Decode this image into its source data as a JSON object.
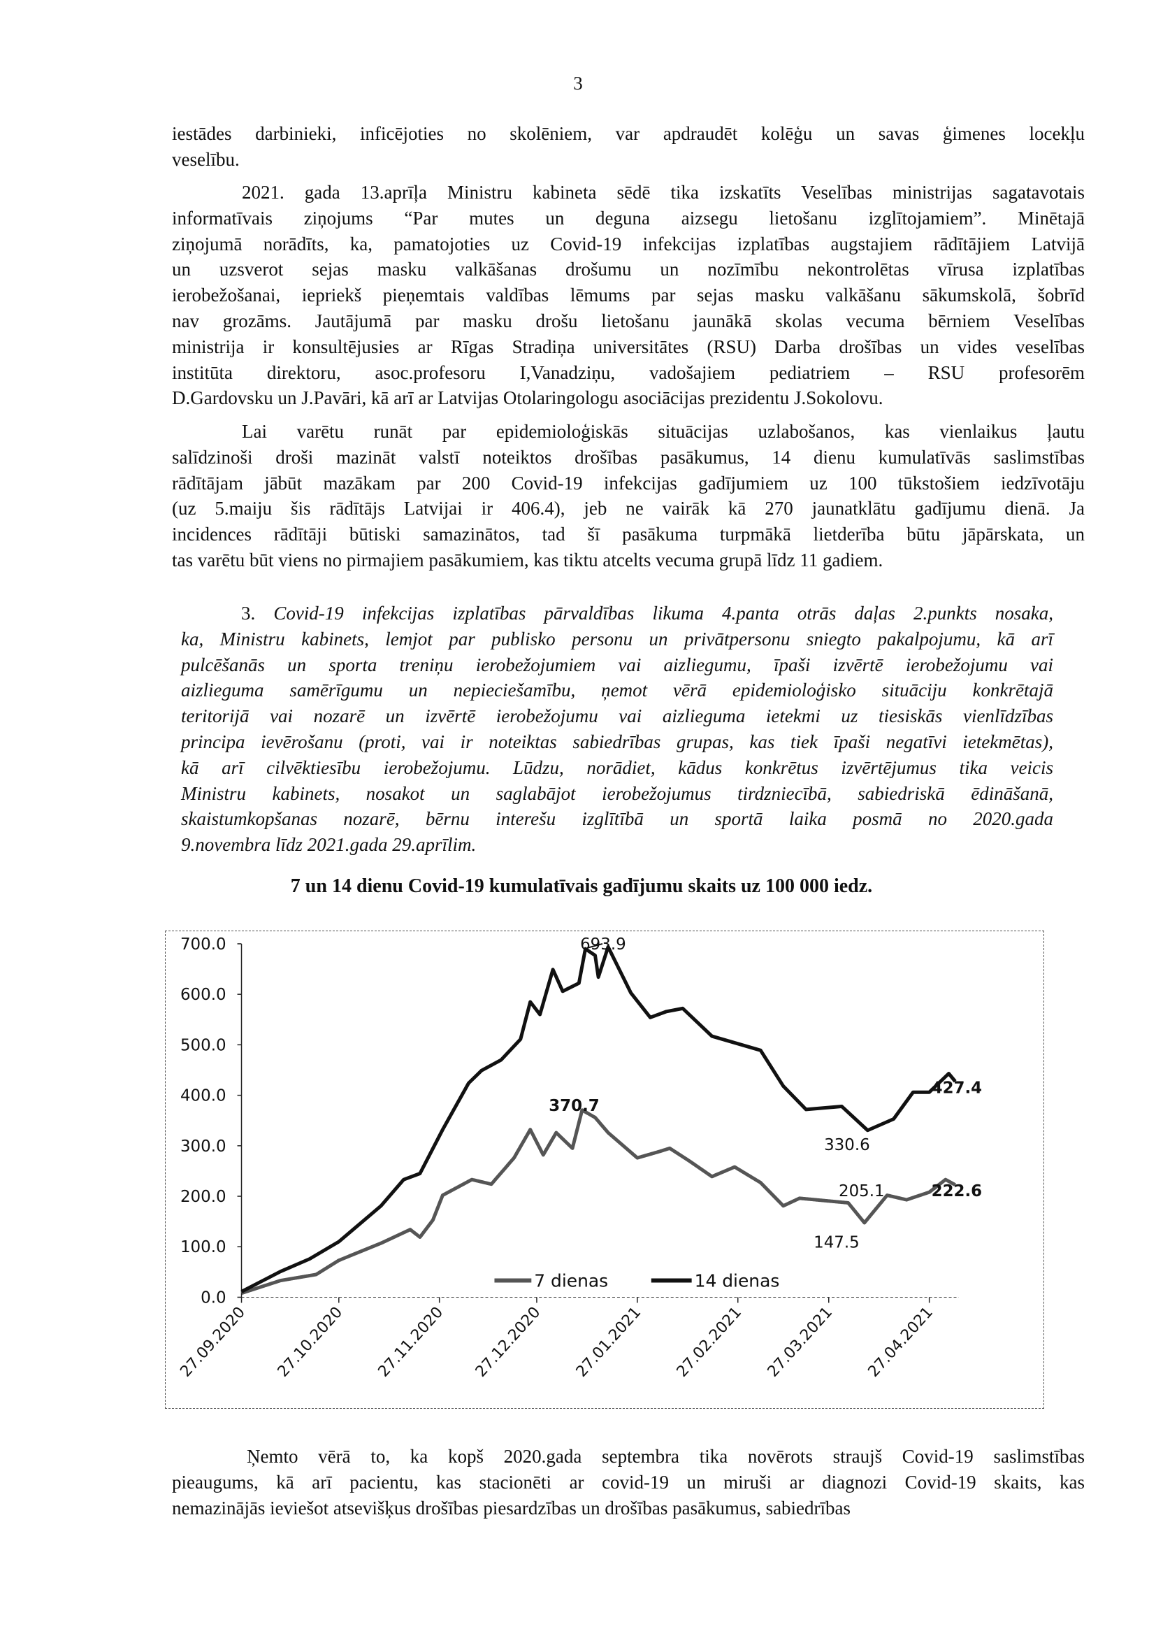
{
  "page_number": "3",
  "paragraphs": [
    {
      "indent": false,
      "italic": false,
      "lines": [
        "iestādes darbinieki, inficējoties no skolēniem, var apdraudēt kolēģu un savas ģimenes locekļu",
        "veselību."
      ]
    },
    {
      "indent": true,
      "italic": false,
      "lines": [
        "2021. gada 13.aprīļa Ministru kabineta sēdē tika izskatīts Veselības ministrijas sagatavotais",
        "informatīvais ziņojums “Par mutes un deguna aizsegu lietošanu izglītojamiem”. Minētajā",
        "ziņojumā norādīts, ka, pamatojoties uz Covid-19 infekcijas izplatības augstajiem rādītājiem Latvijā",
        "un uzsverot sejas masku valkāšanas drošumu un nozīmību nekontrolētas vīrusa izplatības",
        "ierobežošanai, iepriekš pieņemtais valdības lēmums par sejas masku valkāšanu sākumskolā, šobrīd",
        "nav grozāms. Jautājumā par masku drošu lietošanu jaunākā skolas vecuma bērniem Veselības",
        "ministrija ir konsultējusies ar Rīgas Stradiņa universitātes (RSU) Darba drošības un vides veselības",
        "institūta direktoru, asoc.profesoru I,Vanadziņu, vadošajiem pediatriem – RSU profesorēm",
        "D.Gardovsku un J.Pavāri, kā arī ar Latvijas Otolaringologu asociācijas prezidentu J.Sokolovu."
      ]
    },
    {
      "indent": true,
      "italic": false,
      "lines": [
        "Lai varētu runāt par epidemioloģiskās situācijas uzlabošanos, kas vienlaikus ļautu",
        "salīdzinoši droši mazināt valstī noteiktos drošības pasākumus, 14 dienu kumulatīvās saslimstības",
        "rādītājam jābūt mazākam par 200 Covid-19 infekcijas gadījumiem uz 100 tūkstošiem iedzīvotāju",
        "(uz 5.maiju šis rādītājs Latvijai ir 406.4), jeb ne vairāk kā 270 jaunatklātu gadījumu dienā. Ja",
        "incidences rādītāji būtiski samazinātos, tad šī pasākuma turpmākā lietderība būtu jāpārskata, un",
        "tas varētu būt viens no pirmajiem pasākumiem, kas tiktu atcelts vecuma grupā līdz 11 gadiem."
      ]
    }
  ],
  "question": {
    "number": "3.",
    "lines": [
      "Covid-19 infekcijas izplatības pārvaldības likuma 4.panta otrās daļas 2.punkts nosaka,",
      "ka, Ministru kabinets, lemjot par publisko personu un privātpersonu sniegto pakalpojumu, kā arī",
      "pulcēšanās un sporta treniņu ierobežojumiem vai aizliegumu, īpaši izvērtē ierobežojumu vai",
      "aizlieguma samērīgumu un nepieciešamību, ņemot vērā epidemioloģisko situāciju konkrētajā",
      "teritorijā vai nozarē un izvērtē ierobežojumu vai aizlieguma ietekmi uz tiesiskās vienlīdzības",
      "principa ievērošanu (proti, vai ir noteiktas sabiedrības grupas, kas tiek īpaši negatīvi ietekmētas),",
      "kā arī cilvēktiesību ierobežojumu. Lūdzu, norādiet, kādus konkrētus izvērtējumus tika veicis",
      "Ministru kabinets, nosakot un saglabājot ierobežojumus tirdzniecībā, sabiedriskā ēdināšanā,",
      "skaistumkopšanas nozarē, bērnu interešu izglītībā un sportā laika posmā no 2020.gada",
      "9.novembra līdz 2021.gada 29.aprīlim."
    ]
  },
  "chart_title": "7 un 14 dienu Covid-19 kumulatīvais gadījumu skaits uz 100 000 iedz.",
  "chart_data": {
    "type": "line",
    "title": "7 un 14 dienu Covid-19 kumulatīvais gadījumu skaits uz 100 000 iedz.",
    "x_unit": "days since 27.09.2020",
    "xlim": [
      0,
      220
    ],
    "ylim": [
      0,
      700
    ],
    "y_ticks": [
      "0.0",
      "100.0",
      "200.0",
      "300.0",
      "400.0",
      "500.0",
      "600.0",
      "700.0"
    ],
    "x_ticks": [
      {
        "day": 0,
        "label": "27.09.2020"
      },
      {
        "day": 30,
        "label": "27.10.2020"
      },
      {
        "day": 61,
        "label": "27.11.2020"
      },
      {
        "day": 91,
        "label": "27.12.2020"
      },
      {
        "day": 122,
        "label": "27.01.2021"
      },
      {
        "day": 153,
        "label": "27.02.2021"
      },
      {
        "day": 181,
        "label": "27.03.2021"
      },
      {
        "day": 212,
        "label": "27.04.2021"
      }
    ],
    "legend_position": "bottom-center",
    "series": [
      {
        "name": "7 dienas",
        "color": "#555555",
        "points": [
          [
            0,
            8
          ],
          [
            12,
            33
          ],
          [
            23,
            45
          ],
          [
            30,
            73
          ],
          [
            43,
            107
          ],
          [
            52,
            134
          ],
          [
            55,
            119
          ],
          [
            59,
            153
          ],
          [
            62,
            202
          ],
          [
            71,
            233
          ],
          [
            77,
            224
          ],
          [
            84,
            276
          ],
          [
            89,
            332
          ],
          [
            93,
            282
          ],
          [
            97,
            326
          ],
          [
            102,
            295
          ],
          [
            105,
            370.7
          ],
          [
            109,
            356
          ],
          [
            113,
            326
          ],
          [
            122,
            276
          ],
          [
            129,
            289
          ],
          [
            132,
            295
          ],
          [
            138,
            270
          ],
          [
            145,
            239
          ],
          [
            152,
            258
          ],
          [
            160,
            227
          ],
          [
            167,
            181
          ],
          [
            172,
            196
          ],
          [
            187,
            187
          ],
          [
            192,
            147.5
          ],
          [
            199,
            202
          ],
          [
            205,
            193
          ],
          [
            212,
            208
          ],
          [
            217,
            233
          ],
          [
            220,
            222.6
          ]
        ]
      },
      {
        "name": "14 dienas",
        "color": "#111111",
        "points": [
          [
            0,
            11
          ],
          [
            12,
            51
          ],
          [
            21,
            76
          ],
          [
            30,
            110
          ],
          [
            43,
            181
          ],
          [
            50,
            233
          ],
          [
            55,
            245
          ],
          [
            62,
            332
          ],
          [
            70,
            424
          ],
          [
            74,
            449
          ],
          [
            80,
            470
          ],
          [
            86,
            511
          ],
          [
            89,
            585
          ],
          [
            92,
            560
          ],
          [
            96,
            649
          ],
          [
            99,
            606
          ],
          [
            104,
            622
          ],
          [
            106,
            690
          ],
          [
            109,
            677
          ],
          [
            110,
            634
          ],
          [
            113,
            693.9
          ],
          [
            120,
            603
          ],
          [
            126,
            554
          ],
          [
            131,
            566
          ],
          [
            136,
            572
          ],
          [
            145,
            517
          ],
          [
            160,
            489
          ],
          [
            167,
            418
          ],
          [
            174,
            372
          ],
          [
            185,
            378
          ],
          [
            193,
            330.6
          ],
          [
            201,
            353
          ],
          [
            207,
            406
          ],
          [
            212,
            406
          ],
          [
            218,
            443
          ],
          [
            220,
            427.4
          ]
        ]
      }
    ],
    "annotations": [
      {
        "text": "693.9",
        "day": 113,
        "value": 693.9,
        "bold": false
      },
      {
        "text": "370.7",
        "day": 105,
        "value": 370.7,
        "bold": true
      },
      {
        "text": "427.4",
        "day": 220,
        "value": 427.4,
        "bold": true
      },
      {
        "text": "330.6",
        "day": 193,
        "value": 330.6,
        "bold": false
      },
      {
        "text": "205.1",
        "day": 199,
        "value": 205.1,
        "bold": false
      },
      {
        "text": "222.6",
        "day": 220,
        "value": 222.6,
        "bold": true
      },
      {
        "text": "147.5",
        "day": 192,
        "value": 147.5,
        "bold": false
      }
    ]
  },
  "closing_paragraph": {
    "lines": [
      "Ņemto vērā to, ka kopš 2020.gada septembra tika novērots straujš Covid-19 saslimstības",
      "pieaugums, kā arī pacientu, kas stacionēti ar covid-19 un miruši ar diagnozi Covid-19 skaits, kas",
      "nemazinājās ieviešot atsevišķus drošības piesardzības un drošības pasākumus, sabiedrības"
    ]
  }
}
